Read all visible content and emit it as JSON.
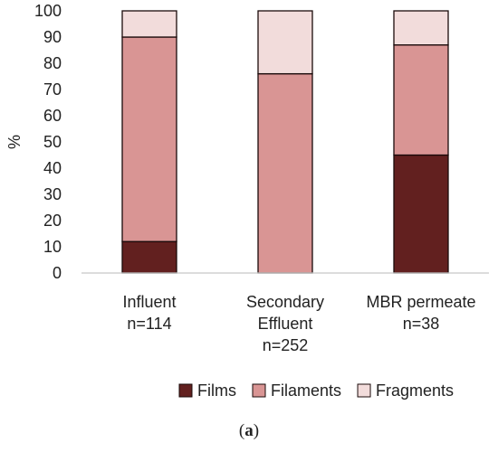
{
  "chart_data": {
    "type": "bar",
    "stacked": true,
    "categories": [
      [
        "Influent",
        "n=114"
      ],
      [
        "Secondary",
        "Effluent",
        "n=252"
      ],
      [
        "MBR permeate",
        "n=38"
      ]
    ],
    "series": [
      {
        "name": "Films",
        "values": [
          12,
          0,
          45
        ],
        "color": "#62201f"
      },
      {
        "name": "Filaments",
        "values": [
          78,
          76,
          42
        ],
        "color": "#d99594"
      },
      {
        "name": "Fragments",
        "values": [
          10,
          24,
          13
        ],
        "color": "#f2dcdb"
      }
    ],
    "ylabel": "%",
    "ylim": [
      0,
      100
    ],
    "yticks": [
      0,
      10,
      20,
      30,
      40,
      50,
      60,
      70,
      80,
      90,
      100
    ],
    "grid": false,
    "legend_position": "bottom-right"
  },
  "caption": {
    "open": "(",
    "letter": "a",
    "close": ")"
  }
}
